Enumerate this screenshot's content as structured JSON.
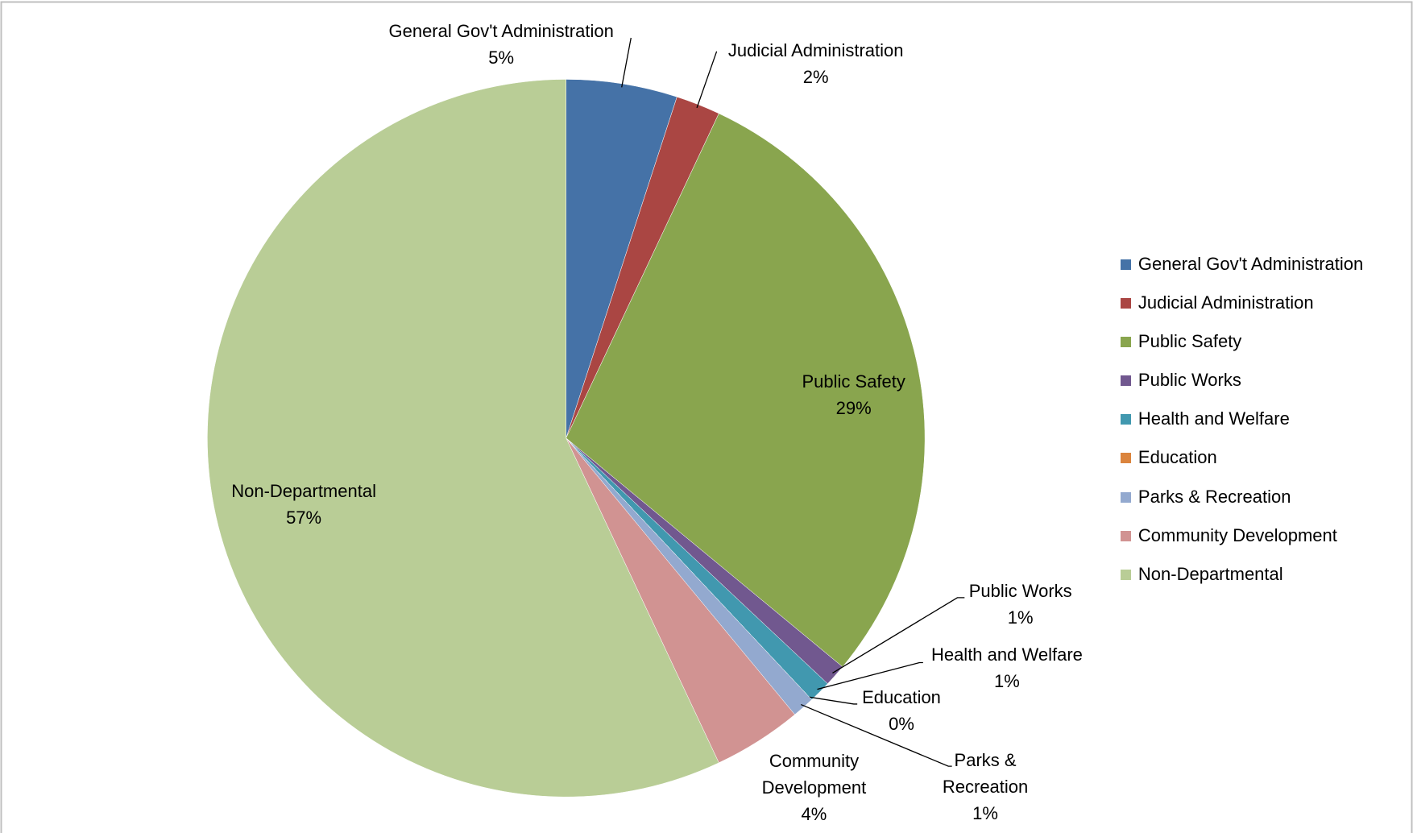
{
  "chart_data": {
    "type": "pie",
    "categories": [
      "General Gov't Administration",
      "Judicial Administration",
      "Public Safety",
      "Public Works",
      "Health and Welfare",
      "Education",
      "Parks & Recreation",
      "Community Development",
      "Non-Departmental"
    ],
    "values": [
      5,
      2,
      29,
      1,
      1,
      0,
      1,
      4,
      57
    ],
    "value_labels": [
      "5%",
      "2%",
      "29%",
      "1%",
      "1%",
      "0%",
      "1%",
      "4%",
      "57%"
    ],
    "colors": [
      "#4572a7",
      "#aa4643",
      "#89a54e",
      "#71588f",
      "#4198af",
      "#db843d",
      "#93a9cf",
      "#d19392",
      "#b9cd96"
    ],
    "legend": "right"
  }
}
